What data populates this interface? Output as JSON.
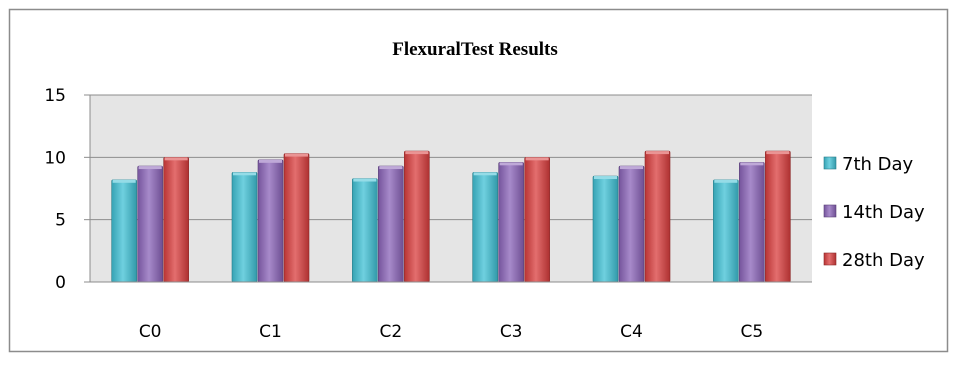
{
  "chart_data": {
    "type": "bar",
    "title": "FlexuralTest Results",
    "categories": [
      "C0",
      "C1",
      "C2",
      "C3",
      "C4",
      "C5"
    ],
    "series": [
      {
        "name": "7th Day",
        "values": [
          8.2,
          8.8,
          8.3,
          8.8,
          8.5,
          8.2
        ],
        "color": "#3fc0d4"
      },
      {
        "name": "14th Day",
        "values": [
          9.3,
          9.8,
          9.3,
          9.6,
          9.3,
          9.6
        ],
        "color": "#8a63b8"
      },
      {
        "name": "28th Day",
        "values": [
          10.0,
          10.3,
          10.5,
          10.0,
          10.5,
          10.5
        ],
        "color": "#d93d3d"
      }
    ],
    "ylim": [
      0,
      15
    ],
    "yticks": [
      0,
      5,
      10,
      15
    ],
    "grid": true,
    "legend_position": "right",
    "plot_background": "#e5e5e5"
  }
}
